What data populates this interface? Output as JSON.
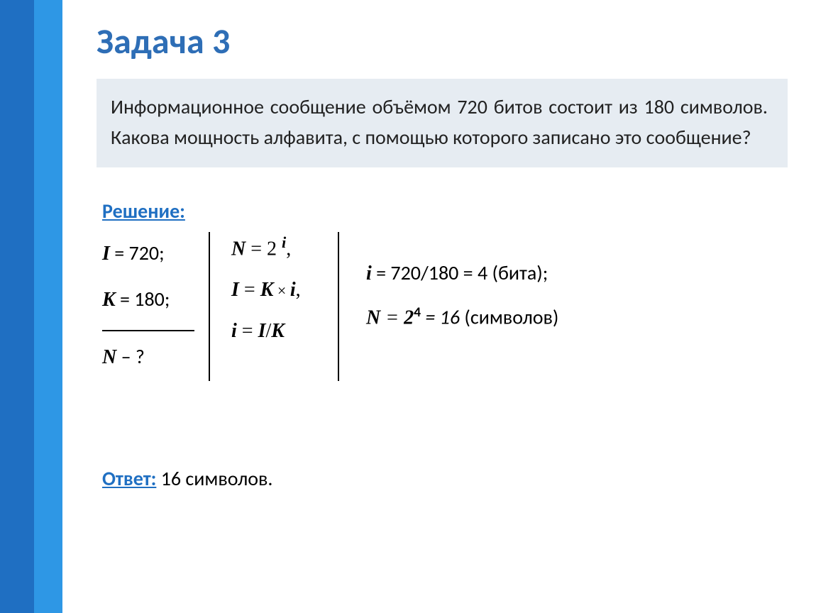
{
  "colors": {
    "bar_dark": "#1f6fc2",
    "bar_light": "#2e97e5",
    "title_color": "#2e6eb6",
    "problem_bg": "#e6ecf2",
    "accent": "#1f6fc2",
    "text": "#000000"
  },
  "title": "Задача 3",
  "problem_text": "Информационное сообщение объёмом 720 битов состоит из 180 символов. Какова мощность алфавита, с помощью которого записано это сообщение?",
  "solution_label": "Решение:",
  "given": {
    "I_var": "I",
    "I_val": " = 720;",
    "K_var": "K",
    "K_val": " = 180;",
    "N_var": "N",
    "N_val": "  – ?"
  },
  "formulas": {
    "f1_lhs": "N",
    "f1_rhs_a": " = 2 ",
    "f1_exp": "i",
    "f1_tail": ",",
    "f2_lhs": "I",
    "f2_mid": " = ",
    "f2_a": "K",
    "f2_times": " × ",
    "f2_b": "i",
    "f2_tail": ",",
    "f3_lhs": "i",
    "f3_mid": " = ",
    "f3_a": "I",
    "f3_slash": "/",
    "f3_b": "K"
  },
  "calc": {
    "c1_var": "i",
    "c1_rest": " = 720/180 = 4 (бита);",
    "c2_var": "N",
    "c2_eq": " = ",
    "c2_base": "2",
    "c2_exp": "4",
    "c2_rest": " = 16 (символов)"
  },
  "answer_label": "Ответ:",
  "answer_text": " 16 символов."
}
